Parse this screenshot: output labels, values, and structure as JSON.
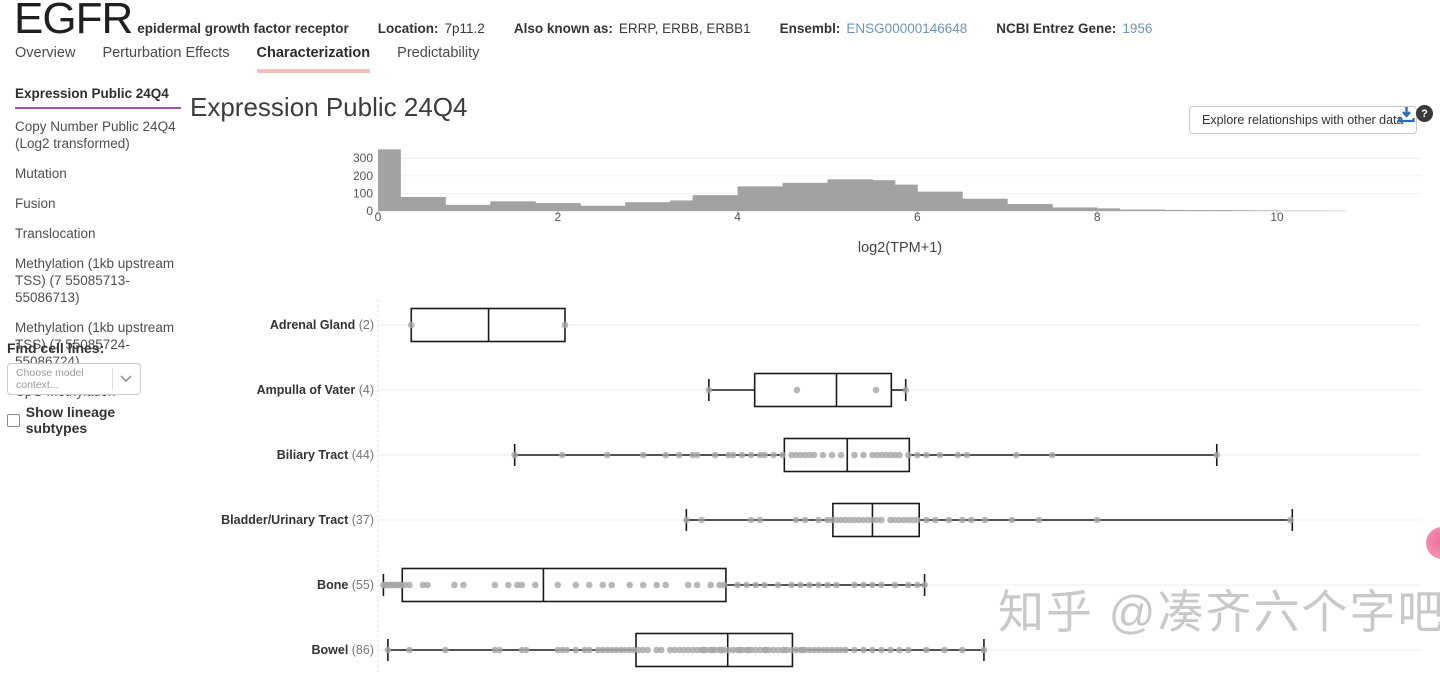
{
  "header": {
    "gene_symbol": "EGFR",
    "gene_name": "epidermal growth factor receptor",
    "location_label": "Location:",
    "location_value": "7p11.2",
    "aka_label": "Also known as:",
    "aka_value": "ERRP, ERBB, ERBB1",
    "ensembl_label": "Ensembl:",
    "ensembl_value": "ENSG00000146648",
    "entrez_label": "NCBI Entrez Gene:",
    "entrez_value": "1956"
  },
  "tabs": [
    {
      "label": "Overview",
      "active": false
    },
    {
      "label": "Perturbation Effects",
      "active": false
    },
    {
      "label": "Characterization",
      "active": true
    },
    {
      "label": "Predictability",
      "active": false
    }
  ],
  "sidebar": {
    "items": [
      {
        "label": "Expression Public 24Q4",
        "active": true
      },
      {
        "label": "Copy Number Public 24Q4 (Log2 transformed)",
        "active": false
      },
      {
        "label": "Mutation",
        "active": false
      },
      {
        "label": "Fusion",
        "active": false
      },
      {
        "label": "Translocation",
        "active": false
      },
      {
        "label": "Methylation (1kb upstream TSS) (7 55085713-55086713)",
        "active": false
      },
      {
        "label": "Methylation (1kb upstream TSS) (7 55085724-55086724)",
        "active": false
      },
      {
        "label": "CpG Methylation",
        "active": false
      }
    ],
    "find_cell_lines_label": "Find cell lines:",
    "context_placeholder": "Choose model context...",
    "show_lineage_label": "Show lineage subtypes"
  },
  "main": {
    "title": "Expression Public 24Q4",
    "explore_button_label": "Explore relationships with other data",
    "help_glyph": "?"
  },
  "watermark": {
    "text": "知乎 @凑齐六个字吧",
    "color": "#c9c9c9"
  },
  "colors": {
    "link_blue": "#6d94bf",
    "tab_underline_pink": "#f3bfbd",
    "sidebar_active_underline": "#9a559e",
    "histogram_bar": "#a2a2a2",
    "box_stroke": "#1a1a1a",
    "point_gray": "#a6a6a6",
    "grid_light": "#ececec",
    "download_blue": "#2a6cb0",
    "pink_dot": "#ee6d9d"
  },
  "chart_data": [
    {
      "type": "bar",
      "subtype": "histogram",
      "title": "Expression Public 24Q4",
      "xlabel": "log2(TPM+1)",
      "ylabel": "",
      "bin_start": 0,
      "bin_width": 0.25,
      "counts": [
        350,
        80,
        80,
        35,
        35,
        55,
        55,
        45,
        45,
        30,
        30,
        50,
        50,
        60,
        90,
        90,
        140,
        140,
        160,
        160,
        180,
        180,
        175,
        150,
        110,
        110,
        70,
        70,
        40,
        40,
        20,
        20,
        15,
        8,
        8,
        6,
        5,
        5,
        4,
        3,
        2,
        2,
        1
      ],
      "xticks": [
        0,
        2,
        4,
        6,
        8,
        10
      ],
      "yticks": [
        0,
        100,
        200,
        300
      ],
      "xlim": [
        0,
        11.6
      ],
      "ylim": [
        0,
        360
      ],
      "grid": true,
      "legend": "none"
    },
    {
      "type": "boxplot",
      "orientation": "horizontal",
      "x_units": "log2(TPM+1)",
      "categories": [
        {
          "label": "Adrenal Gland",
          "n": 2,
          "whisker_low": 0.37,
          "q1": 0.37,
          "median": 1.23,
          "q3": 2.08,
          "whisker_high": 2.08,
          "points": [
            0.37,
            2.08
          ]
        },
        {
          "label": "Ampulla of Vater",
          "n": 4,
          "whisker_low": 3.68,
          "q1": 4.19,
          "median": 5.1,
          "q3": 5.71,
          "whisker_high": 5.87,
          "points": [
            3.68,
            4.66,
            5.54,
            5.87
          ]
        },
        {
          "label": "Biliary Tract",
          "n": 44,
          "whisker_low": 1.52,
          "q1": 4.52,
          "median": 5.22,
          "q3": 5.91,
          "whisker_high": 9.33,
          "points": [
            1.52,
            2.05,
            2.55,
            2.95,
            3.2,
            3.35,
            3.5,
            3.55,
            3.75,
            3.9,
            3.95,
            4.05,
            4.15,
            4.25,
            4.3,
            4.4,
            4.5,
            4.6,
            4.65,
            4.7,
            4.75,
            4.8,
            4.85,
            4.95,
            5.05,
            5.15,
            5.3,
            5.4,
            5.5,
            5.55,
            5.6,
            5.65,
            5.7,
            5.75,
            5.8,
            5.9,
            6.0,
            6.1,
            6.25,
            6.45,
            6.55,
            7.1,
            7.5,
            9.33
          ]
        },
        {
          "label": "Bladder/Urinary Tract",
          "n": 37,
          "whisker_low": 3.43,
          "q1": 5.06,
          "median": 5.5,
          "q3": 6.02,
          "whisker_high": 10.17,
          "points": [
            3.43,
            3.6,
            4.15,
            4.25,
            4.65,
            4.75,
            4.9,
            5.0,
            5.05,
            5.1,
            5.15,
            5.2,
            5.25,
            5.3,
            5.35,
            5.4,
            5.45,
            5.5,
            5.55,
            5.6,
            5.7,
            5.75,
            5.8,
            5.85,
            5.9,
            5.95,
            6.0,
            6.1,
            6.2,
            6.35,
            6.5,
            6.6,
            6.75,
            7.05,
            7.35,
            8.0,
            10.15
          ]
        },
        {
          "label": "Bone",
          "n": 55,
          "whisker_low": 0.06,
          "q1": 0.27,
          "median": 1.84,
          "q3": 3.87,
          "whisker_high": 6.08,
          "points": [
            0.06,
            0.08,
            0.1,
            0.12,
            0.14,
            0.16,
            0.18,
            0.2,
            0.22,
            0.24,
            0.26,
            0.3,
            0.35,
            0.5,
            0.55,
            0.85,
            0.95,
            1.3,
            1.45,
            1.55,
            1.6,
            1.75,
            2.0,
            2.2,
            2.35,
            2.5,
            2.6,
            2.8,
            2.95,
            3.1,
            3.2,
            3.45,
            3.55,
            3.7,
            3.8,
            3.85,
            4.0,
            4.1,
            4.2,
            4.3,
            4.45,
            4.6,
            4.7,
            4.8,
            4.9,
            5.0,
            5.1,
            5.3,
            5.4,
            5.5,
            5.6,
            5.75,
            5.9,
            6.0,
            6.08
          ]
        },
        {
          "label": "Bowel",
          "n": 86,
          "whisker_low": 0.11,
          "q1": 2.87,
          "median": 3.89,
          "q3": 4.61,
          "whisker_high": 6.74,
          "points": [
            0.11,
            0.35,
            0.75,
            1.3,
            1.35,
            1.6,
            1.65,
            2.0,
            2.05,
            2.1,
            2.2,
            2.3,
            2.35,
            2.45,
            2.5,
            2.55,
            2.6,
            2.65,
            2.7,
            2.75,
            2.8,
            2.85,
            2.9,
            2.95,
            3.0,
            3.1,
            3.15,
            3.25,
            3.3,
            3.35,
            3.4,
            3.45,
            3.5,
            3.55,
            3.6,
            3.62,
            3.65,
            3.7,
            3.72,
            3.75,
            3.8,
            3.82,
            3.85,
            3.9,
            3.95,
            4.0,
            4.02,
            4.05,
            4.1,
            4.12,
            4.15,
            4.2,
            4.25,
            4.3,
            4.32,
            4.35,
            4.4,
            4.45,
            4.5,
            4.52,
            4.55,
            4.6,
            4.65,
            4.7,
            4.72,
            4.75,
            4.8,
            4.85,
            4.9,
            4.95,
            5.0,
            5.05,
            5.1,
            5.15,
            5.2,
            5.3,
            5.4,
            5.5,
            5.6,
            5.7,
            5.8,
            5.9,
            6.1,
            6.3,
            6.5,
            6.74
          ]
        }
      ]
    }
  ]
}
